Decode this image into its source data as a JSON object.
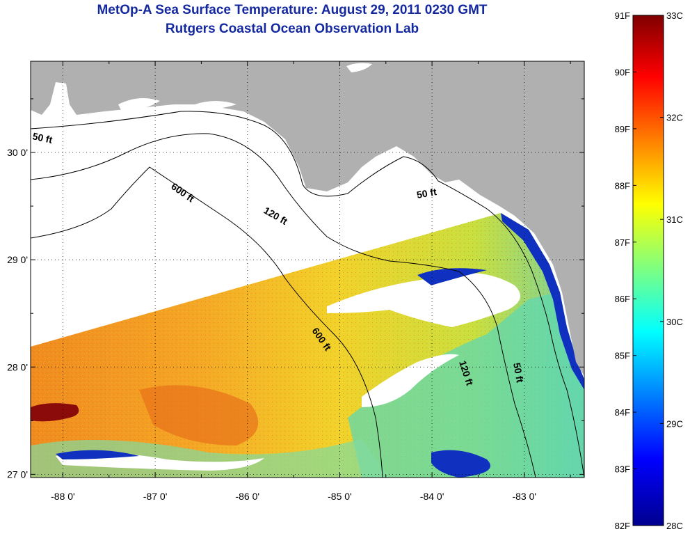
{
  "title": "MetOp-A Sea Surface Temperature:  August 29, 2011 0230 GMT",
  "subtitle": "Rutgers Coastal Ocean Observation Lab",
  "map": {
    "lon_range": [
      -88.35,
      -82.35
    ],
    "lat_range": [
      26.97,
      30.85
    ],
    "lat_ticks": [
      {
        "value": 30,
        "label": "30 0'"
      },
      {
        "value": 29,
        "label": "29 0'"
      },
      {
        "value": 28,
        "label": "28 0'"
      },
      {
        "value": 27,
        "label": "27 0'"
      }
    ],
    "lon_ticks": [
      {
        "value": -88,
        "label": "-88 0'"
      },
      {
        "value": -87,
        "label": "-87 0'"
      },
      {
        "value": -86,
        "label": "-86 0'"
      },
      {
        "value": -85,
        "label": "-85 0'"
      },
      {
        "value": -84,
        "label": "-84 0'"
      },
      {
        "value": -83,
        "label": "-83 0'"
      }
    ],
    "grid": "dotted",
    "contour_labels": [
      "50 ft",
      "600 ft",
      "120 ft",
      "50 ft",
      "600 ft",
      "120 ft",
      "50 ft"
    ],
    "land_color": "#b0b0b0"
  },
  "colorbar": {
    "fahrenheit_labels": [
      "91F",
      "90F",
      "89F",
      "88F",
      "87F",
      "86F",
      "85F",
      "84F",
      "83F",
      "82F"
    ],
    "celsius_labels": [
      "33C",
      "32C",
      "31C",
      "30C",
      "29C",
      "28C"
    ],
    "range_c": [
      28,
      33
    ],
    "colormap": "jet"
  }
}
